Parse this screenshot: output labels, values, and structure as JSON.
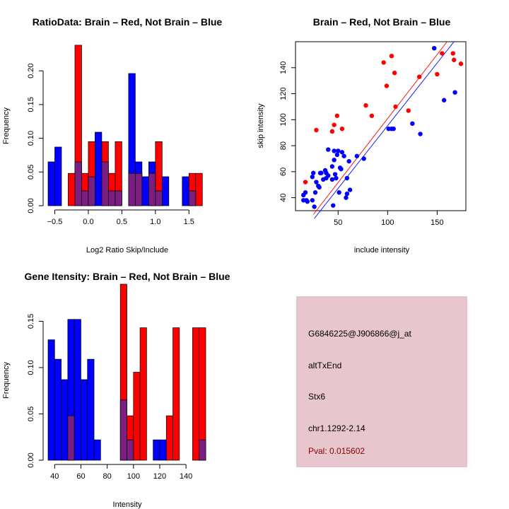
{
  "colors": {
    "red": "#ff0000",
    "blue": "#0000ff",
    "overlap": "#7b1e82",
    "panel": "#e8c6ce",
    "pval": "#8b0000"
  },
  "chart_data": [
    {
      "id": "ratio_hist",
      "type": "bar",
      "title": "RatioData: Brain – Red, Not Brain – Blue",
      "xlabel": "Log2 Ratio Skip/Include",
      "ylabel": "Frequency",
      "xlim": [
        -0.6,
        1.75
      ],
      "ylim": [
        0,
        0.24
      ],
      "xticks": [
        -0.5,
        0.0,
        0.5,
        1.0,
        1.5
      ],
      "xtick_labels": [
        "−0.5",
        "0.0",
        "0.5",
        "1.0",
        "1.5"
      ],
      "yticks": [
        0.0,
        0.05,
        0.1,
        0.15,
        0.2
      ],
      "ytick_labels": [
        "0.00",
        "0.05",
        "0.10",
        "0.15",
        "0.20"
      ],
      "series": [
        {
          "name": "Not Brain",
          "color": "blue",
          "bins": [
            [
              -0.6,
              -0.5,
              0.065
            ],
            [
              -0.5,
              -0.4,
              0.087
            ],
            [
              -0.2,
              -0.1,
              0.065
            ],
            [
              -0.1,
              0.0,
              0.022
            ],
            [
              0.0,
              0.1,
              0.043
            ],
            [
              0.1,
              0.2,
              0.109
            ],
            [
              0.2,
              0.3,
              0.065
            ],
            [
              0.3,
              0.4,
              0.022
            ],
            [
              0.4,
              0.5,
              0.022
            ],
            [
              0.6,
              0.7,
              0.196
            ],
            [
              0.7,
              0.8,
              0.065
            ],
            [
              0.8,
              0.9,
              0.043
            ],
            [
              0.9,
              1.0,
              0.065
            ],
            [
              1.0,
              1.1,
              0.022
            ],
            [
              1.1,
              1.2,
              0.043
            ],
            [
              1.4,
              1.5,
              0.043
            ],
            [
              1.5,
              1.6,
              0.022
            ]
          ]
        },
        {
          "name": "Brain",
          "color": "red",
          "bins": [
            [
              -0.3,
              -0.2,
              0.048
            ],
            [
              -0.2,
              -0.1,
              0.238
            ],
            [
              -0.1,
              0.0,
              0.048
            ],
            [
              0.0,
              0.1,
              0.095
            ],
            [
              0.2,
              0.3,
              0.095
            ],
            [
              0.3,
              0.4,
              0.048
            ],
            [
              0.4,
              0.5,
              0.095
            ],
            [
              0.6,
              0.7,
              0.048
            ],
            [
              0.7,
              0.8,
              0.048
            ],
            [
              0.9,
              1.0,
              0.048
            ],
            [
              1.0,
              1.1,
              0.095
            ],
            [
              1.5,
              1.6,
              0.048
            ],
            [
              1.6,
              1.7,
              0.048
            ]
          ]
        }
      ]
    },
    {
      "id": "scatter",
      "type": "scatter",
      "title": "Brain – Red, Not Brain – Blue",
      "xlabel": "include intensity",
      "ylabel": "skip intensity",
      "xlim": [
        7,
        179
      ],
      "ylim": [
        30,
        160
      ],
      "xticks": [
        50,
        100,
        150
      ],
      "xtick_labels": [
        "50",
        "100",
        "150"
      ],
      "yticks": [
        40,
        60,
        80,
        100,
        120,
        140
      ],
      "ytick_labels": [
        "40",
        "60",
        "80",
        "100",
        "120",
        "140"
      ],
      "series": [
        {
          "name": "Brain",
          "color": "red",
          "points": [
            [
              17,
              52
            ],
            [
              28,
              92
            ],
            [
              44,
              91
            ],
            [
              46,
              96
            ],
            [
              49,
              103
            ],
            [
              54,
              93
            ],
            [
              78,
              111
            ],
            [
              84,
              103
            ],
            [
              96,
              144
            ],
            [
              99,
              126
            ],
            [
              104,
              149
            ],
            [
              107,
              136
            ],
            [
              108,
              110
            ],
            [
              121,
              107
            ],
            [
              132,
              133
            ],
            [
              150,
              135
            ],
            [
              155,
              151
            ],
            [
              166,
              151
            ],
            [
              167,
              146
            ],
            [
              174,
              143
            ]
          ]
        },
        {
          "name": "Not Brain",
          "color": "blue",
          "points": [
            [
              15,
              42
            ],
            [
              15,
              38
            ],
            [
              17,
              44
            ],
            [
              18,
              38
            ],
            [
              19,
              37
            ],
            [
              24,
              38
            ],
            [
              24,
              56
            ],
            [
              25,
              59
            ],
            [
              26,
              33
            ],
            [
              27,
              44
            ],
            [
              28,
              52
            ],
            [
              30,
              49
            ],
            [
              31,
              48
            ],
            [
              32,
              59
            ],
            [
              33,
              59
            ],
            [
              35,
              54
            ],
            [
              37,
              61
            ],
            [
              38,
              59
            ],
            [
              38,
              55
            ],
            [
              40,
              57
            ],
            [
              40,
              77
            ],
            [
              44,
              54
            ],
            [
              44,
              64
            ],
            [
              45,
              34
            ],
            [
              46,
              69
            ],
            [
              46,
              76
            ],
            [
              47,
              58
            ],
            [
              48,
              55
            ],
            [
              49,
              73
            ],
            [
              50,
              76
            ],
            [
              51,
              44
            ],
            [
              52,
              63
            ],
            [
              53,
              62
            ],
            [
              54,
              75
            ],
            [
              56,
              72
            ],
            [
              58,
              40
            ],
            [
              59,
              55
            ],
            [
              59,
              43
            ],
            [
              61,
              68
            ],
            [
              62,
              46
            ],
            [
              69,
              72
            ],
            [
              76,
              70
            ],
            [
              101,
              93
            ],
            [
              104,
              93
            ],
            [
              106,
              93
            ],
            [
              125,
              97
            ],
            [
              133,
              89
            ],
            [
              147,
              155
            ],
            [
              157,
              115
            ],
            [
              168,
              121
            ]
          ]
        }
      ],
      "lines": [
        {
          "name": "Brain fit",
          "color": "red",
          "x": [
            25,
            160
          ],
          "y": [
            27,
            160
          ]
        },
        {
          "name": "Not Brain fit",
          "color": "blue",
          "x": [
            26,
            167
          ],
          "y": [
            24,
            160
          ]
        }
      ]
    },
    {
      "id": "intensity_hist",
      "type": "bar",
      "title": "Gene Itensity: Brain – Red, Not Brain – Blue",
      "xlabel": "Intensity",
      "ylabel": "Frequency",
      "xlim": [
        35,
        155
      ],
      "ylim": [
        0,
        0.19
      ],
      "xticks": [
        40,
        60,
        80,
        100,
        120,
        140
      ],
      "xtick_labels": [
        "40",
        "60",
        "80",
        "100",
        "120",
        "140"
      ],
      "yticks": [
        0.0,
        0.05,
        0.1,
        0.15
      ],
      "ytick_labels": [
        "0.00",
        "0.05",
        "0.10",
        "0.15"
      ],
      "series": [
        {
          "name": "Not Brain",
          "color": "blue",
          "bins": [
            [
              35,
              40,
              0.13
            ],
            [
              40,
              45,
              0.109
            ],
            [
              45,
              50,
              0.087
            ],
            [
              50,
              55,
              0.152
            ],
            [
              55,
              60,
              0.152
            ],
            [
              60,
              65,
              0.087
            ],
            [
              65,
              70,
              0.109
            ],
            [
              70,
              75,
              0.022
            ],
            [
              90,
              95,
              0.065
            ],
            [
              95,
              100,
              0.022
            ],
            [
              115,
              120,
              0.022
            ],
            [
              120,
              125,
              0.022
            ],
            [
              150,
              155,
              0.022
            ]
          ]
        },
        {
          "name": "Brain",
          "color": "red",
          "bins": [
            [
              50,
              55,
              0.048
            ],
            [
              90,
              95,
              0.19
            ],
            [
              95,
              100,
              0.048
            ],
            [
              100,
              105,
              0.095
            ],
            [
              105,
              110,
              0.143
            ],
            [
              125,
              130,
              0.048
            ],
            [
              130,
              135,
              0.143
            ],
            [
              145,
              150,
              0.143
            ],
            [
              150,
              155,
              0.143
            ]
          ]
        }
      ]
    }
  ],
  "info_panel": {
    "probe_id": "G6846225@J906866@j_at",
    "event_type": "altTxEnd",
    "gene": "Stx6",
    "location": "chr1.1292-2.14",
    "pval": "Pval: 0.015602"
  }
}
